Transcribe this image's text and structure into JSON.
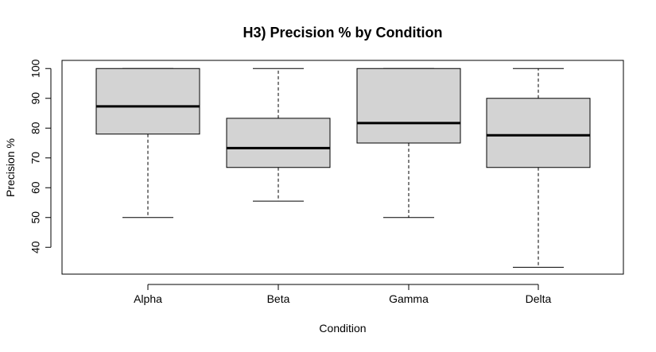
{
  "chart_data": {
    "type": "boxplot",
    "title": "H3) Precision % by Condition",
    "xlabel": "Condition",
    "ylabel": "Precision %",
    "categories": [
      "Alpha",
      "Beta",
      "Gamma",
      "Delta"
    ],
    "boxes": [
      {
        "name": "Alpha",
        "min": 50,
        "q1": 78,
        "median": 87.3,
        "q3": 100,
        "max": 100
      },
      {
        "name": "Beta",
        "min": 55.5,
        "q1": 66.8,
        "median": 73.3,
        "q3": 83.3,
        "max": 100
      },
      {
        "name": "Gamma",
        "min": 50,
        "q1": 75,
        "median": 81.7,
        "q3": 100,
        "max": 100
      },
      {
        "name": "Delta",
        "min": 33.3,
        "q1": 66.8,
        "median": 77.6,
        "q3": 90,
        "max": 100
      }
    ],
    "ylim": [
      31,
      103
    ],
    "yticks": [
      40,
      50,
      60,
      70,
      80,
      90,
      100
    ],
    "box_fill": "#d3d3d3",
    "grid": false
  }
}
